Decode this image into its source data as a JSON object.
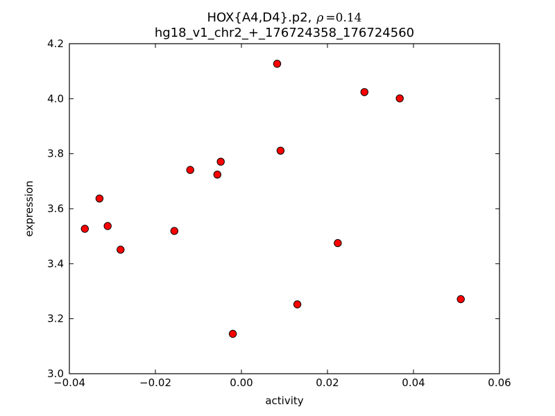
{
  "figure": {
    "title_prefix": "HOX{A4,D4}.p2,",
    "title_rho": "ρ",
    "title_rho_eq": "=0.14",
    "title_line2": "hg18_v1_chr2_+_176724358_176724560"
  },
  "chart_data": {
    "type": "scatter",
    "title": "HOX{A4,D4}.p2, ρ=0.14\nhg18_v1_chr2_+_176724358_176724560",
    "xlabel": "activity",
    "ylabel": "expression",
    "xlim": [
      -0.04,
      0.06
    ],
    "ylim": [
      3.0,
      4.2
    ],
    "x_ticks": [
      -0.04,
      -0.02,
      0.0,
      0.02,
      0.04,
      0.06
    ],
    "x_tick_labels": [
      "−0.04",
      "−0.02",
      "0.00",
      "0.02",
      "0.04",
      "0.06"
    ],
    "y_ticks": [
      3.0,
      3.2,
      3.4,
      3.6,
      3.8,
      4.0,
      4.2
    ],
    "y_tick_labels": [
      "3.0",
      "3.2",
      "3.4",
      "3.6",
      "3.8",
      "4.0",
      "4.2"
    ],
    "grid": false,
    "legend": null,
    "marker": {
      "shape": "circle",
      "fill_color": "#ff0000",
      "edge_color": "#000000",
      "radius_px": 5.2
    },
    "frame_color": "#000000",
    "background_color": "#ffffff",
    "points": [
      {
        "x": -0.0364,
        "y": 3.527
      },
      {
        "x": -0.033,
        "y": 3.637
      },
      {
        "x": -0.0311,
        "y": 3.537
      },
      {
        "x": -0.0281,
        "y": 3.451
      },
      {
        "x": -0.0156,
        "y": 3.519
      },
      {
        "x": -0.0119,
        "y": 3.741
      },
      {
        "x": -0.0056,
        "y": 3.724
      },
      {
        "x": -0.0048,
        "y": 3.771
      },
      {
        "x": -0.002,
        "y": 3.145
      },
      {
        "x": 0.0083,
        "y": 4.127
      },
      {
        "x": 0.0091,
        "y": 3.811
      },
      {
        "x": 0.013,
        "y": 3.252
      },
      {
        "x": 0.0224,
        "y": 3.475
      },
      {
        "x": 0.0286,
        "y": 4.024
      },
      {
        "x": 0.0368,
        "y": 4.001
      },
      {
        "x": 0.051,
        "y": 3.271
      }
    ]
  }
}
